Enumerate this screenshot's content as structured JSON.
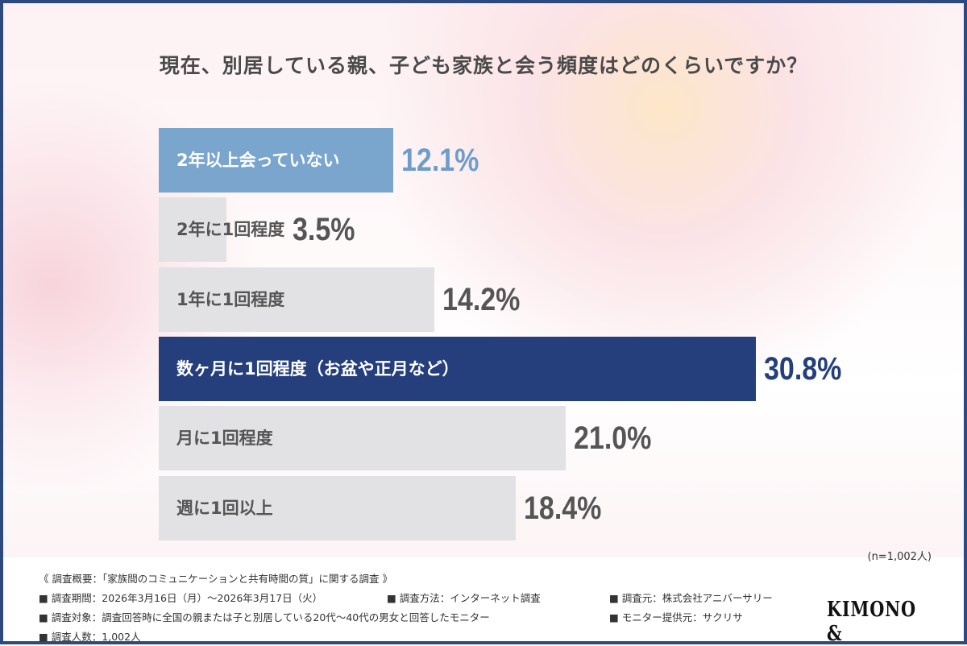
{
  "chart_data": {
    "type": "bar",
    "orientation": "horizontal",
    "title": "現在、別居している親、子ども家族と会う頻度はどのくらいですか？",
    "categories": [
      "2年以上会っていない",
      "2年に1回程度",
      "1年に1回程度",
      "数ヶ月に1回程度（お盆や正月など）",
      "月に1回程度",
      "週に1回以上"
    ],
    "values": [
      12.1,
      3.5,
      14.2,
      30.8,
      21.0,
      18.4
    ],
    "value_labels": [
      "12.1%",
      "3.5%",
      "14.2%",
      "30.8%",
      "21.0%",
      "18.4%"
    ],
    "unit": "%",
    "bar_colors": [
      "#7aa5cd",
      "#e2e1e3",
      "#e2e1e3",
      "#253f7c",
      "#e2e1e3",
      "#e2e1e3"
    ],
    "label_colors": [
      "#ffffff",
      "#555555",
      "#555555",
      "#ffffff",
      "#555555",
      "#555555"
    ],
    "value_colors": [
      "#6d9dca",
      "#555555",
      "#555555",
      "#253f7c",
      "#555555",
      "#555555"
    ],
    "xlim": [
      0,
      30.8
    ],
    "grid": false
  },
  "sample_note": "(n=1,002人)",
  "footer": {
    "overview": "《 調査概要：「家族間のコミュニケーションと共有時間の質」に関する調査 》",
    "period": "■ 調査期間：2026年3月16日（月）～2026年3月17日（火）",
    "method": "■ 調査方法：インターネット調査",
    "source": "■ 調査元：株式会社アニバーサリー",
    "target": "■ 調査対象：調査回答時に全国の親または子と別居している20代～40代の男女と回答したモニター",
    "provider": "■ モニター提供元：サクリサ",
    "count": "■ 調査人数：1,002人",
    "logo": "KIMONO &"
  }
}
